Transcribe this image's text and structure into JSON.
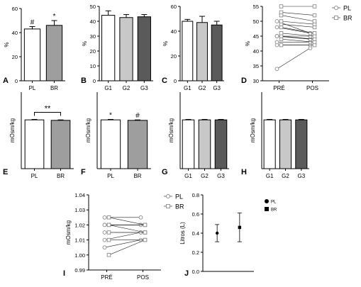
{
  "colors": {
    "white": "#ffffff",
    "light_gray": "#c8c8c8",
    "mid_gray": "#9e9e9e",
    "dark_gray": "#5a5a5a",
    "line_gray": "#8a8a8a"
  },
  "chart_data": [
    {
      "panel": "A",
      "type": "bar",
      "ylabel": "%",
      "ylim": [
        0,
        60
      ],
      "yticks": [
        "0",
        "20",
        "40",
        "60"
      ],
      "categories": [
        "PL",
        "BR"
      ],
      "values": [
        43,
        46
      ],
      "errors": [
        2,
        4
      ],
      "fills": [
        "white",
        "mid_gray"
      ],
      "annotations": [
        {
          "category": "PL",
          "text": "#"
        },
        {
          "category": "BR",
          "text": "*"
        }
      ]
    },
    {
      "panel": "B",
      "type": "bar",
      "ylabel": "%",
      "ylim": [
        0,
        50
      ],
      "yticks": [
        "0",
        "10",
        "20",
        "30",
        "40",
        "50"
      ],
      "categories": [
        "G1",
        "G2",
        "G3"
      ],
      "values": [
        44,
        42.5,
        43
      ],
      "errors": [
        3,
        2,
        1.5
      ],
      "fills": [
        "white",
        "light_gray",
        "dark_gray"
      ]
    },
    {
      "panel": "C",
      "type": "bar",
      "ylabel": "%",
      "ylim": [
        0,
        60
      ],
      "yticks": [
        "0",
        "20",
        "40",
        "60"
      ],
      "categories": [
        "G1",
        "G2",
        "G3"
      ],
      "values": [
        48,
        47,
        45
      ],
      "errors": [
        1.5,
        5,
        3
      ],
      "fills": [
        "white",
        "light_gray",
        "dark_gray"
      ]
    },
    {
      "panel": "D",
      "type": "line",
      "ylabel": "%",
      "ylim": [
        30,
        55
      ],
      "yticks": [
        "30",
        "35",
        "40",
        "45",
        "50",
        "55"
      ],
      "categories": [
        "PRÉ",
        "POS"
      ],
      "legend": [
        {
          "name": "PL",
          "marker": "circle"
        },
        {
          "name": "BR",
          "marker": "square"
        }
      ],
      "series": [
        {
          "name": "PL",
          "pre": [
            34,
            42,
            43,
            45,
            45,
            45,
            48,
            50
          ],
          "pos": [
            41,
            42,
            43,
            44,
            44,
            45,
            46,
            46
          ]
        },
        {
          "name": "BR",
          "pre": [
            42,
            44,
            45,
            46,
            48,
            49,
            50,
            52,
            53,
            55
          ],
          "pos": [
            42,
            43,
            44,
            45,
            46,
            48,
            49,
            50,
            52,
            55
          ]
        }
      ]
    },
    {
      "panel": "E",
      "type": "bar",
      "ylabel": "mOsm/kg",
      "ylim": [
        0,
        1.6
      ],
      "categories": [
        "PL",
        "BR"
      ],
      "values": [
        1.02,
        1.01
      ],
      "errors": [
        0.01,
        0.01
      ],
      "fills": [
        "white",
        "mid_gray"
      ],
      "annotations": [
        {
          "bracket": [
            "PL",
            "BR"
          ],
          "text": "**"
        }
      ]
    },
    {
      "panel": "F",
      "type": "bar",
      "ylabel": "mOsm/kg",
      "ylim": [
        0,
        1.6
      ],
      "categories": [
        "PL",
        "BR"
      ],
      "values": [
        1.02,
        1.01
      ],
      "errors": [
        0.01,
        0.01
      ],
      "fills": [
        "white",
        "mid_gray"
      ],
      "annotations": [
        {
          "category": "PL",
          "text": "*"
        },
        {
          "category": "BR",
          "text": "#"
        }
      ]
    },
    {
      "panel": "G",
      "type": "bar",
      "ylabel": "mOsm/kg",
      "ylim": [
        0,
        1.6
      ],
      "categories": [
        "G1",
        "G2",
        "G3"
      ],
      "values": [
        1.02,
        1.02,
        1.02
      ],
      "errors": [
        0.01,
        0.01,
        0.01
      ],
      "fills": [
        "white",
        "light_gray",
        "dark_gray"
      ]
    },
    {
      "panel": "H",
      "type": "bar",
      "ylabel": "mOsm/kg",
      "ylim": [
        0,
        1.6
      ],
      "categories": [
        "G1",
        "G2",
        "G3"
      ],
      "values": [
        1.02,
        1.02,
        1.02
      ],
      "errors": [
        0.01,
        0.01,
        0.01
      ],
      "fills": [
        "white",
        "light_gray",
        "dark_gray"
      ]
    },
    {
      "panel": "I",
      "type": "line",
      "ylabel": "mOsm/kg",
      "ylim": [
        0.99,
        1.04
      ],
      "yticks": [
        "0.99",
        "1.00",
        "1.01",
        "1.02",
        "1.03",
        "1.04"
      ],
      "categories": [
        "PRÉ",
        "POS"
      ],
      "legend": [
        {
          "name": "PL",
          "marker": "circle"
        },
        {
          "name": "BR",
          "marker": "square"
        }
      ],
      "series": [
        {
          "name": "PL",
          "pre": [
            1.005,
            1.01,
            1.015,
            1.02,
            1.02,
            1.025
          ],
          "pos": [
            1.01,
            1.015,
            1.015,
            1.02,
            1.02,
            1.025
          ]
        },
        {
          "name": "BR",
          "pre": [
            1.0,
            1.01,
            1.015,
            1.02,
            1.02,
            1.025
          ],
          "pos": [
            1.01,
            1.01,
            1.015,
            1.015,
            1.02,
            1.02
          ]
        }
      ]
    },
    {
      "panel": "J",
      "type": "scatter",
      "ylabel": "Litros (L)",
      "ylim": [
        0,
        0.8
      ],
      "yticks": [
        "0.0",
        "0.2",
        "0.4",
        "0.6",
        "0.8"
      ],
      "legend": [
        {
          "name": "PL",
          "marker": "circle"
        },
        {
          "name": "BR",
          "marker": "square"
        }
      ],
      "series": [
        {
          "name": "PL",
          "marker": "circle",
          "value": 0.4,
          "error": 0.09
        },
        {
          "name": "BR",
          "marker": "square",
          "value": 0.46,
          "error": 0.15
        }
      ]
    }
  ]
}
